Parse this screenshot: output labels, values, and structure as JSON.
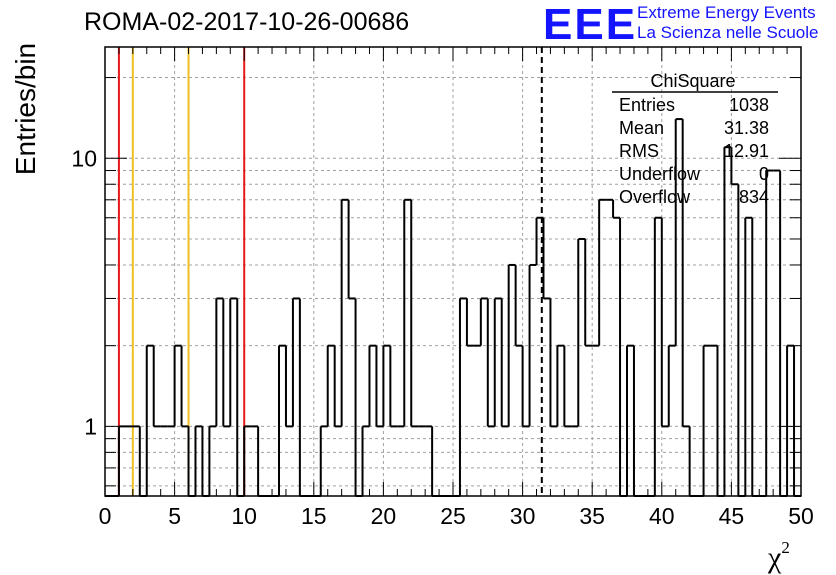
{
  "header": {
    "run_title": "ROMA-02-2017-10-26-00686",
    "logo_text": "EEE",
    "logo_line1": "Extreme Energy Events",
    "logo_line2": "La Scienza nelle Scuole",
    "logo_color": "#1414ff"
  },
  "stats_box": {
    "title": "ChiSquare",
    "rows": [
      {
        "label": "Entries",
        "value": "1038"
      },
      {
        "label": "Mean",
        "value": "31.38"
      },
      {
        "label": "RMS",
        "value": "12.91"
      },
      {
        "label": "Underflow",
        "value": "0"
      },
      {
        "label": "Overflow",
        "value": "834"
      }
    ]
  },
  "chart_data": {
    "type": "bar",
    "histogram_style": "step",
    "bin_width": 0.5,
    "x_start": 0,
    "values": [
      0,
      0,
      1,
      1,
      1,
      0,
      2,
      1,
      1,
      1,
      2,
      1,
      0,
      1,
      0,
      1,
      3,
      1,
      3,
      0,
      1,
      1,
      0,
      0,
      0,
      2,
      1,
      3,
      0,
      0,
      0,
      1,
      2,
      1,
      7,
      3,
      0,
      1,
      2,
      1,
      2,
      1,
      1,
      7,
      1,
      1,
      1,
      0,
      0,
      0,
      0,
      3,
      2,
      2,
      3,
      1,
      3,
      1,
      4,
      2,
      1,
      4,
      6,
      3,
      1,
      2,
      1,
      1,
      5,
      2,
      2,
      7,
      7,
      6,
      0,
      2,
      0,
      0,
      0,
      6,
      1,
      2,
      14,
      1,
      0,
      0,
      2,
      2,
      0,
      11,
      8,
      0,
      6,
      0,
      0,
      9,
      9,
      0,
      2,
      0
    ],
    "xlabel": "χ²",
    "ylabel": "Entries/bin",
    "xlim": [
      0,
      50
    ],
    "ylim": [
      0.55,
      26
    ],
    "y_scale": "log",
    "x_ticks": [
      "0",
      "5",
      "10",
      "15",
      "20",
      "25",
      "30",
      "35",
      "40",
      "45",
      "50"
    ],
    "y_ticks": [
      "1",
      "10"
    ],
    "grid": true,
    "markers": [
      {
        "x": 1,
        "color": "#e8181a",
        "style": "solid"
      },
      {
        "x": 2,
        "color": "#f0c020",
        "style": "solid"
      },
      {
        "x": 6,
        "color": "#f0c020",
        "style": "solid"
      },
      {
        "x": 10,
        "color": "#e8181a",
        "style": "solid"
      },
      {
        "x": 31.38,
        "color": "#000000",
        "style": "dashed"
      }
    ]
  }
}
